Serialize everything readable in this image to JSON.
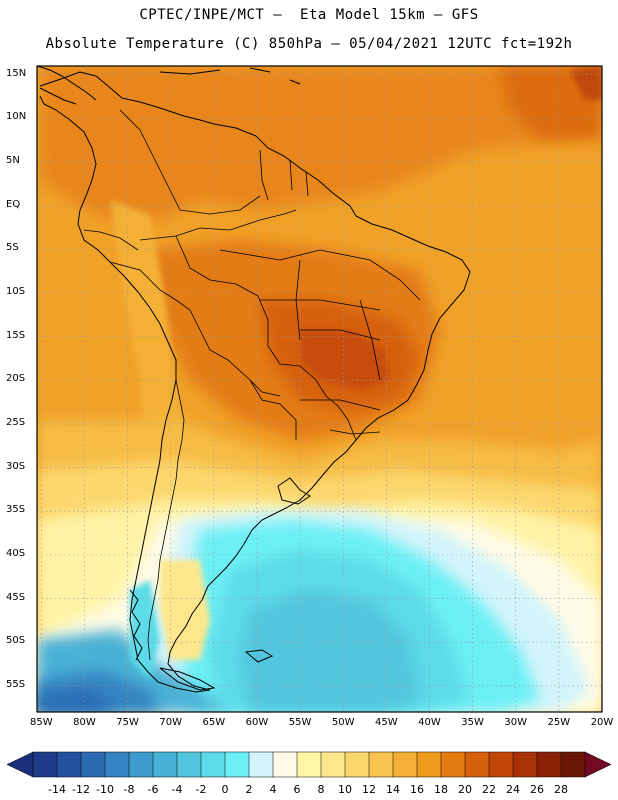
{
  "title": {
    "line1": "CPTEC/INPE/MCT –  Eta Model 15km – GFS",
    "line2": "Absolute Temperature (C) 850hPa – 05/04/2021 12UTC fct=192h"
  },
  "map": {
    "variable": "Absolute Temperature",
    "unit": "C",
    "level": "850hPa",
    "lat_range": [
      -58,
      16
    ],
    "lon_range": [
      -85.5,
      -20
    ]
  },
  "axes": {
    "lat_ticks": [
      {
        "value": 15,
        "label": "15N"
      },
      {
        "value": 10,
        "label": "10N"
      },
      {
        "value": 5,
        "label": "5N"
      },
      {
        "value": 0,
        "label": "EQ"
      },
      {
        "value": -5,
        "label": "5S"
      },
      {
        "value": -10,
        "label": "10S"
      },
      {
        "value": -15,
        "label": "15S"
      },
      {
        "value": -20,
        "label": "20S"
      },
      {
        "value": -25,
        "label": "25S"
      },
      {
        "value": -30,
        "label": "30S"
      },
      {
        "value": -35,
        "label": "35S"
      },
      {
        "value": -40,
        "label": "40S"
      },
      {
        "value": -45,
        "label": "45S"
      },
      {
        "value": -50,
        "label": "50S"
      },
      {
        "value": -55,
        "label": "55S"
      }
    ],
    "lon_ticks": [
      {
        "value": -85,
        "label": "85W"
      },
      {
        "value": -80,
        "label": "80W"
      },
      {
        "value": -75,
        "label": "75W"
      },
      {
        "value": -70,
        "label": "70W"
      },
      {
        "value": -65,
        "label": "65W"
      },
      {
        "value": -60,
        "label": "60W"
      },
      {
        "value": -55,
        "label": "55W"
      },
      {
        "value": -50,
        "label": "50W"
      },
      {
        "value": -45,
        "label": "45W"
      },
      {
        "value": -40,
        "label": "40W"
      },
      {
        "value": -35,
        "label": "35W"
      },
      {
        "value": -30,
        "label": "30W"
      },
      {
        "value": -25,
        "label": "25W"
      },
      {
        "value": -20,
        "label": "20W"
      }
    ]
  },
  "colorbar": {
    "labels": [
      "-14",
      "-12",
      "-10",
      "-8",
      "-6",
      "-4",
      "-2",
      "0",
      "2",
      "4",
      "6",
      "8",
      "10",
      "12",
      "14",
      "16",
      "18",
      "20",
      "22",
      "24",
      "26",
      "28"
    ],
    "colors": [
      "#1f3c8c",
      "#24529f",
      "#2c6bb2",
      "#3584c1",
      "#3e9ccd",
      "#48b1d6",
      "#52c6df",
      "#5cdbe8",
      "#6cf0f5",
      "#d2f4fb",
      "#fffbe6",
      "#fff6a8",
      "#fde78c",
      "#fbd66c",
      "#f8c44e",
      "#f4b034",
      "#ef9b1e",
      "#e47c12",
      "#d6600c",
      "#c24608",
      "#a83206",
      "#8a2205",
      "#6a1604"
    ],
    "left_arrow_color": "#1a2f7a",
    "right_arrow_color": "#720a24"
  },
  "colors": {
    "base": "#f0a128",
    "frame": "#000000"
  }
}
